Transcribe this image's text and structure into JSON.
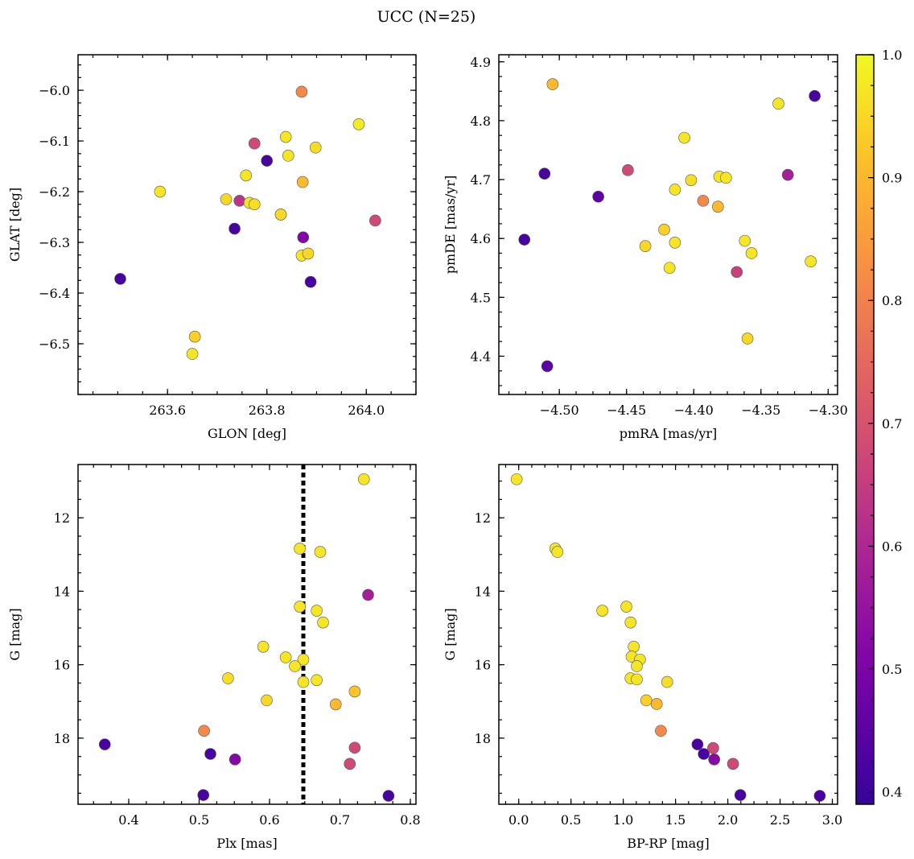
{
  "figure": {
    "title": "UCC (N=25)"
  },
  "colorbar": {
    "min": 0.39,
    "max": 1.0,
    "ticks": [
      0.4,
      0.5,
      0.6,
      0.7,
      0.8,
      0.9,
      1.0
    ],
    "tick_labels": [
      "0.4",
      "0.5",
      "0.6",
      "0.7",
      "0.8",
      "0.9",
      "1.0"
    ],
    "colormap": "plasma"
  },
  "chart_data": [
    {
      "id": "glon-glat",
      "type": "scatter",
      "title": "",
      "xlabel": "GLON [deg]",
      "ylabel": "GLAT [deg]",
      "xlim": [
        263.42,
        264.1
      ],
      "ylim": [
        -6.6,
        -5.93
      ],
      "xticks": [
        263.6,
        263.8,
        264.0
      ],
      "xtick_labels": [
        "263.6",
        "263.8",
        "264.0"
      ],
      "yticks": [
        -6.0,
        -6.1,
        -6.2,
        -6.3,
        -6.4,
        -6.5
      ],
      "ytick_labels": [
        "−6.0",
        "−6.1",
        "−6.2",
        "−6.3",
        "−6.4",
        "−6.5"
      ],
      "x": [
        263.87,
        263.985,
        263.838,
        263.898,
        263.775,
        263.843,
        263.8,
        263.758,
        263.585,
        263.718,
        263.745,
        263.765,
        263.775,
        263.872,
        263.828,
        264.018,
        263.735,
        263.873,
        263.87,
        263.883,
        263.888,
        263.505,
        263.655,
        263.65,
        263.828
      ],
      "y": [
        -6.003,
        -6.067,
        -6.092,
        -6.113,
        -6.105,
        -6.129,
        -6.139,
        -6.168,
        -6.2,
        -6.215,
        -6.218,
        -6.222,
        -6.225,
        -6.181,
        -6.245,
        -6.257,
        -6.273,
        -6.29,
        -6.326,
        -6.322,
        -6.378,
        -6.372,
        -6.486,
        -6.52,
        -6.245
      ],
      "c": [
        0.81,
        0.98,
        0.97,
        0.96,
        0.68,
        0.97,
        0.42,
        0.97,
        0.97,
        0.95,
        0.63,
        0.97,
        0.96,
        0.9,
        0.96,
        0.68,
        0.42,
        0.51,
        0.97,
        0.95,
        0.42,
        0.42,
        0.94,
        0.97,
        0.95
      ]
    },
    {
      "id": "pm",
      "type": "scatter",
      "title": "",
      "xlabel": "pmRA [mas/yr]",
      "ylabel": "pmDE [mas/yr]",
      "xlim": [
        -4.545,
        -4.293
      ],
      "ylim": [
        4.335,
        4.912
      ],
      "xticks": [
        -4.5,
        -4.45,
        -4.4,
        -4.35,
        -4.3
      ],
      "xtick_labels": [
        "−4.50",
        "−4.45",
        "−4.40",
        "−4.35",
        "−4.30"
      ],
      "yticks": [
        4.4,
        4.5,
        4.6,
        4.7,
        4.8,
        4.9
      ],
      "ytick_labels": [
        "4.4",
        "4.5",
        "4.6",
        "4.7",
        "4.8",
        "4.9"
      ],
      "x": [
        -4.505,
        -4.31,
        -4.337,
        -4.407,
        -4.511,
        -4.449,
        -4.471,
        -4.381,
        -4.376,
        -4.33,
        -4.402,
        -4.414,
        -4.393,
        -4.382,
        -4.422,
        -4.414,
        -4.526,
        -4.362,
        -4.436,
        -4.357,
        -4.418,
        -4.368,
        -4.313,
        -4.36,
        -4.509
      ],
      "y": [
        4.862,
        4.842,
        4.829,
        4.771,
        4.71,
        4.716,
        4.671,
        4.705,
        4.703,
        4.708,
        4.699,
        4.683,
        4.664,
        4.654,
        4.615,
        4.593,
        4.598,
        4.596,
        4.587,
        4.575,
        4.55,
        4.543,
        4.561,
        4.43,
        4.383
      ],
      "c": [
        0.9,
        0.42,
        0.97,
        0.97,
        0.42,
        0.68,
        0.45,
        0.97,
        0.97,
        0.58,
        0.96,
        0.97,
        0.81,
        0.9,
        0.94,
        0.97,
        0.42,
        0.97,
        0.95,
        0.97,
        0.97,
        0.66,
        0.97,
        0.95,
        0.45
      ]
    },
    {
      "id": "plx-g",
      "type": "scatter",
      "title": "",
      "xlabel": "Plx [mas]",
      "ylabel": "G [mag]",
      "xlim": [
        0.328,
        0.808
      ],
      "ylim": [
        19.8,
        10.55
      ],
      "xticks": [
        0.4,
        0.5,
        0.6,
        0.7,
        0.8
      ],
      "xtick_labels": [
        "0.4",
        "0.5",
        "0.6",
        "0.7",
        "0.8"
      ],
      "yticks": [
        12,
        14,
        16,
        18
      ],
      "ytick_labels": [
        "12",
        "14",
        "16",
        "18"
      ],
      "vline": 0.648,
      "x": [
        0.734,
        0.643,
        0.672,
        0.74,
        0.643,
        0.667,
        0.676,
        0.591,
        0.623,
        0.648,
        0.636,
        0.541,
        0.648,
        0.667,
        0.721,
        0.596,
        0.694,
        0.507,
        0.366,
        0.721,
        0.516,
        0.551,
        0.714,
        0.506,
        0.769
      ],
      "y": [
        10.95,
        12.84,
        12.93,
        14.1,
        14.42,
        14.53,
        14.85,
        15.51,
        15.8,
        15.86,
        16.04,
        16.37,
        16.47,
        16.42,
        16.73,
        16.97,
        17.08,
        17.8,
        18.17,
        18.26,
        18.43,
        18.58,
        18.7,
        19.55,
        19.57
      ],
      "c": [
        0.97,
        0.97,
        0.97,
        0.58,
        0.97,
        0.97,
        0.97,
        0.97,
        0.97,
        0.97,
        0.97,
        0.96,
        0.97,
        0.97,
        0.92,
        0.95,
        0.9,
        0.81,
        0.42,
        0.68,
        0.42,
        0.52,
        0.68,
        0.42,
        0.42
      ]
    },
    {
      "id": "cmd",
      "type": "scatter",
      "title": "",
      "xlabel": "BP-RP [mag]",
      "ylabel": "G [mag]",
      "xlim": [
        -0.19,
        3.05
      ],
      "ylim": [
        19.8,
        10.55
      ],
      "xticks": [
        0.0,
        0.5,
        1.0,
        1.5,
        2.0,
        2.5,
        3.0
      ],
      "xtick_labels": [
        "0.0",
        "0.5",
        "1.0",
        "1.5",
        "2.0",
        "2.5",
        "3.0"
      ],
      "yticks": [
        12,
        14,
        16,
        18
      ],
      "ytick_labels": [
        "12",
        "14",
        "16",
        "18"
      ],
      "x": [
        -0.02,
        0.35,
        0.37,
        1.03,
        0.8,
        1.07,
        1.1,
        1.08,
        1.16,
        1.13,
        1.07,
        1.13,
        1.42,
        1.22,
        1.32,
        1.36,
        1.71,
        1.77,
        1.86,
        1.87,
        2.05,
        2.12,
        2.88
      ],
      "y": [
        10.95,
        12.84,
        12.93,
        14.42,
        14.53,
        14.85,
        15.51,
        15.78,
        15.86,
        16.04,
        16.37,
        16.4,
        16.47,
        16.97,
        17.07,
        17.8,
        18.17,
        18.43,
        18.27,
        18.58,
        18.7,
        19.55,
        19.57
      ],
      "c": [
        0.97,
        0.97,
        0.97,
        0.97,
        0.97,
        0.97,
        0.97,
        0.97,
        0.97,
        0.97,
        0.97,
        0.97,
        0.96,
        0.94,
        0.9,
        0.81,
        0.42,
        0.42,
        0.68,
        0.52,
        0.68,
        0.42,
        0.42
      ]
    }
  ]
}
